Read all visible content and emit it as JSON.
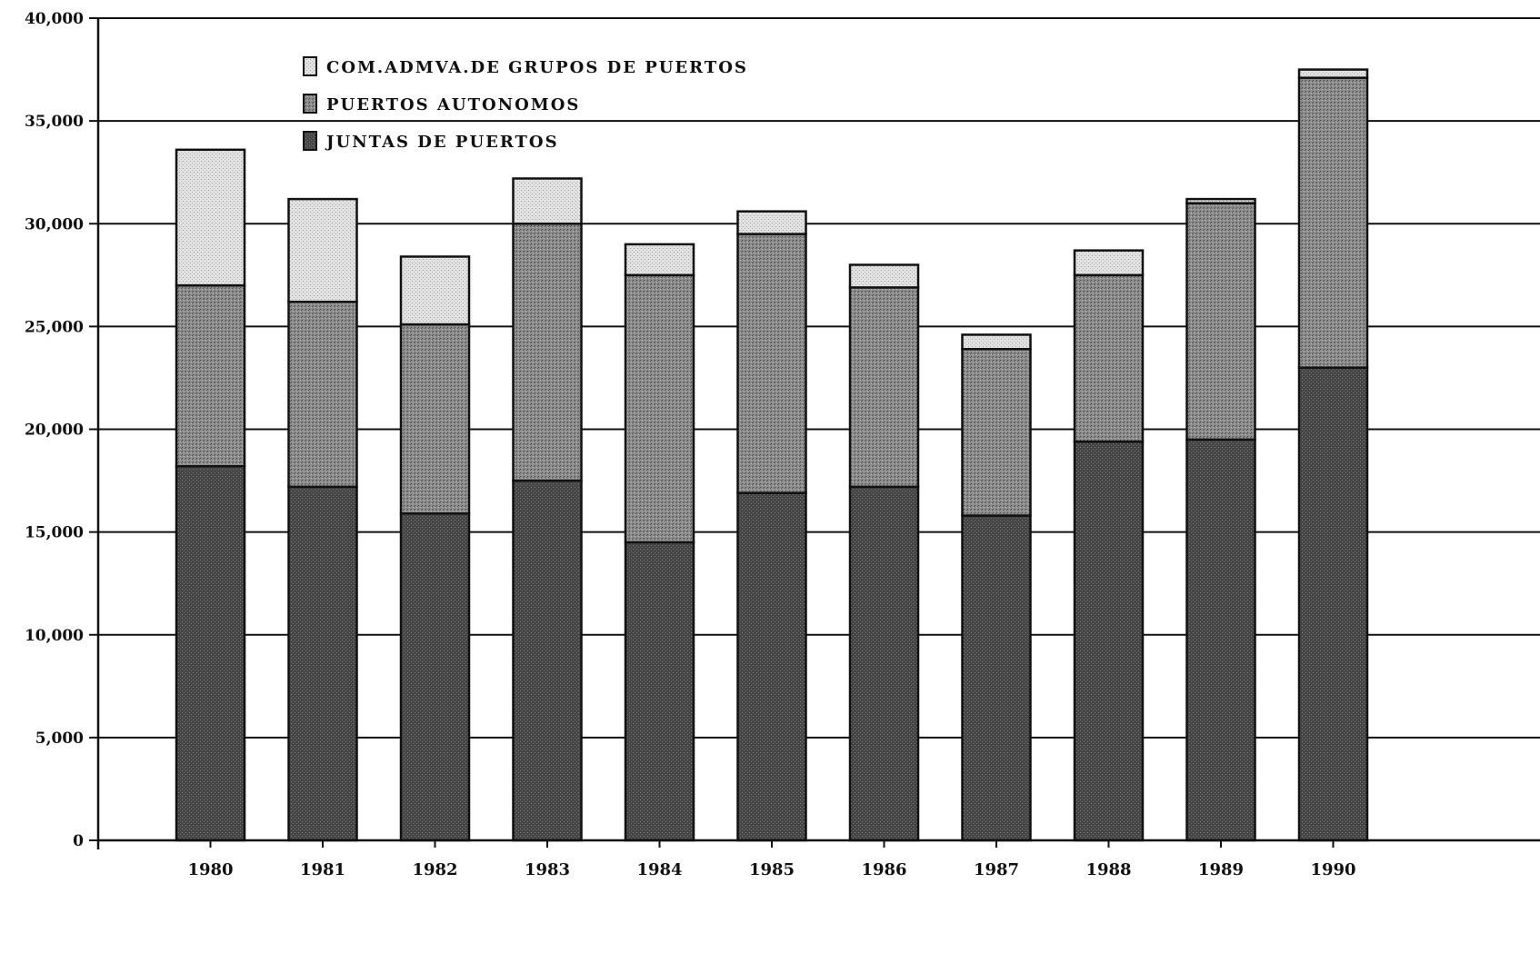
{
  "chart_data": {
    "type": "bar",
    "stacked": true,
    "categories": [
      "1980",
      "1981",
      "1982",
      "1983",
      "1984",
      "1985",
      "1986",
      "1987",
      "1988",
      "1989",
      "1990"
    ],
    "series": [
      {
        "name": "JUNTAS DE PUERTOS",
        "color": "#4a4a4a",
        "values": [
          18200,
          17200,
          15900,
          17500,
          14500,
          16900,
          17200,
          15800,
          19400,
          19500,
          23000
        ]
      },
      {
        "name": "PUERTOS AUTONOMOS",
        "color": "#8a8a8a",
        "values": [
          8800,
          9000,
          9200,
          12500,
          13000,
          12600,
          9700,
          8100,
          8100,
          11500,
          14100
        ]
      },
      {
        "name": "COM.ADMVA.DE GRUPOS DE PUERTOS",
        "color": "#d6d6d6",
        "values": [
          6600,
          5000,
          3300,
          2200,
          1500,
          1100,
          1100,
          700,
          1200,
          200,
          400
        ]
      }
    ],
    "legend_order": [
      "COM.ADMVA.DE GRUPOS DE PUERTOS",
      "PUERTOS AUTONOMOS",
      "JUNTAS DE PUERTOS"
    ],
    "legend_placement": "top-left",
    "y_ticks": [
      "0",
      "5,000",
      "10,000",
      "15,000",
      "20,000",
      "25,000",
      "30,000",
      "35,000",
      "40,000"
    ],
    "ylim": [
      0,
      40000
    ],
    "grid": true,
    "title": "",
    "xlabel": "",
    "ylabel": ""
  }
}
